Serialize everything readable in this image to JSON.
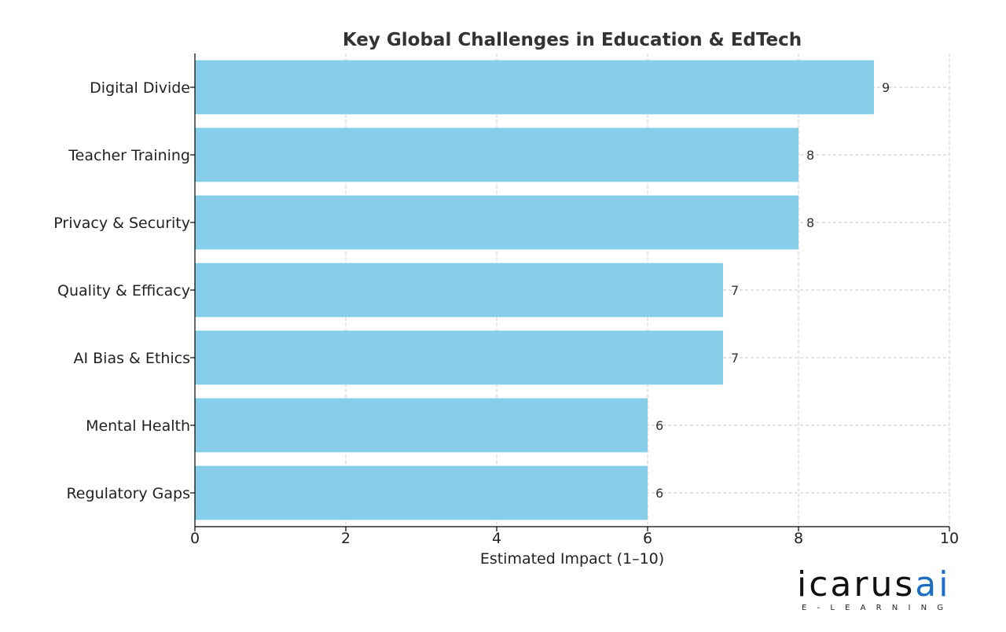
{
  "chart_data": {
    "type": "bar",
    "orientation": "horizontal",
    "title": "Key Global Challenges in Education & EdTech",
    "xlabel": "Estimated Impact (1–10)",
    "ylabel": "",
    "categories": [
      "Digital Divide",
      "Teacher Training",
      "Privacy & Security",
      "Quality & Efficacy",
      "AI Bias & Ethics",
      "Mental Health",
      "Regulatory Gaps"
    ],
    "values": [
      9,
      8,
      8,
      7,
      7,
      6,
      6
    ],
    "xlim": [
      0,
      10
    ],
    "xticks": [
      "0",
      "2",
      "4",
      "6",
      "8",
      "10"
    ],
    "grid": true,
    "bar_color": "#87ceeb",
    "data_labels": true
  },
  "logo": {
    "main_dark": "icarus",
    "main_accent": "ai",
    "tagline": "E-LEARNING",
    "accent_color": "#1a6fc4"
  }
}
